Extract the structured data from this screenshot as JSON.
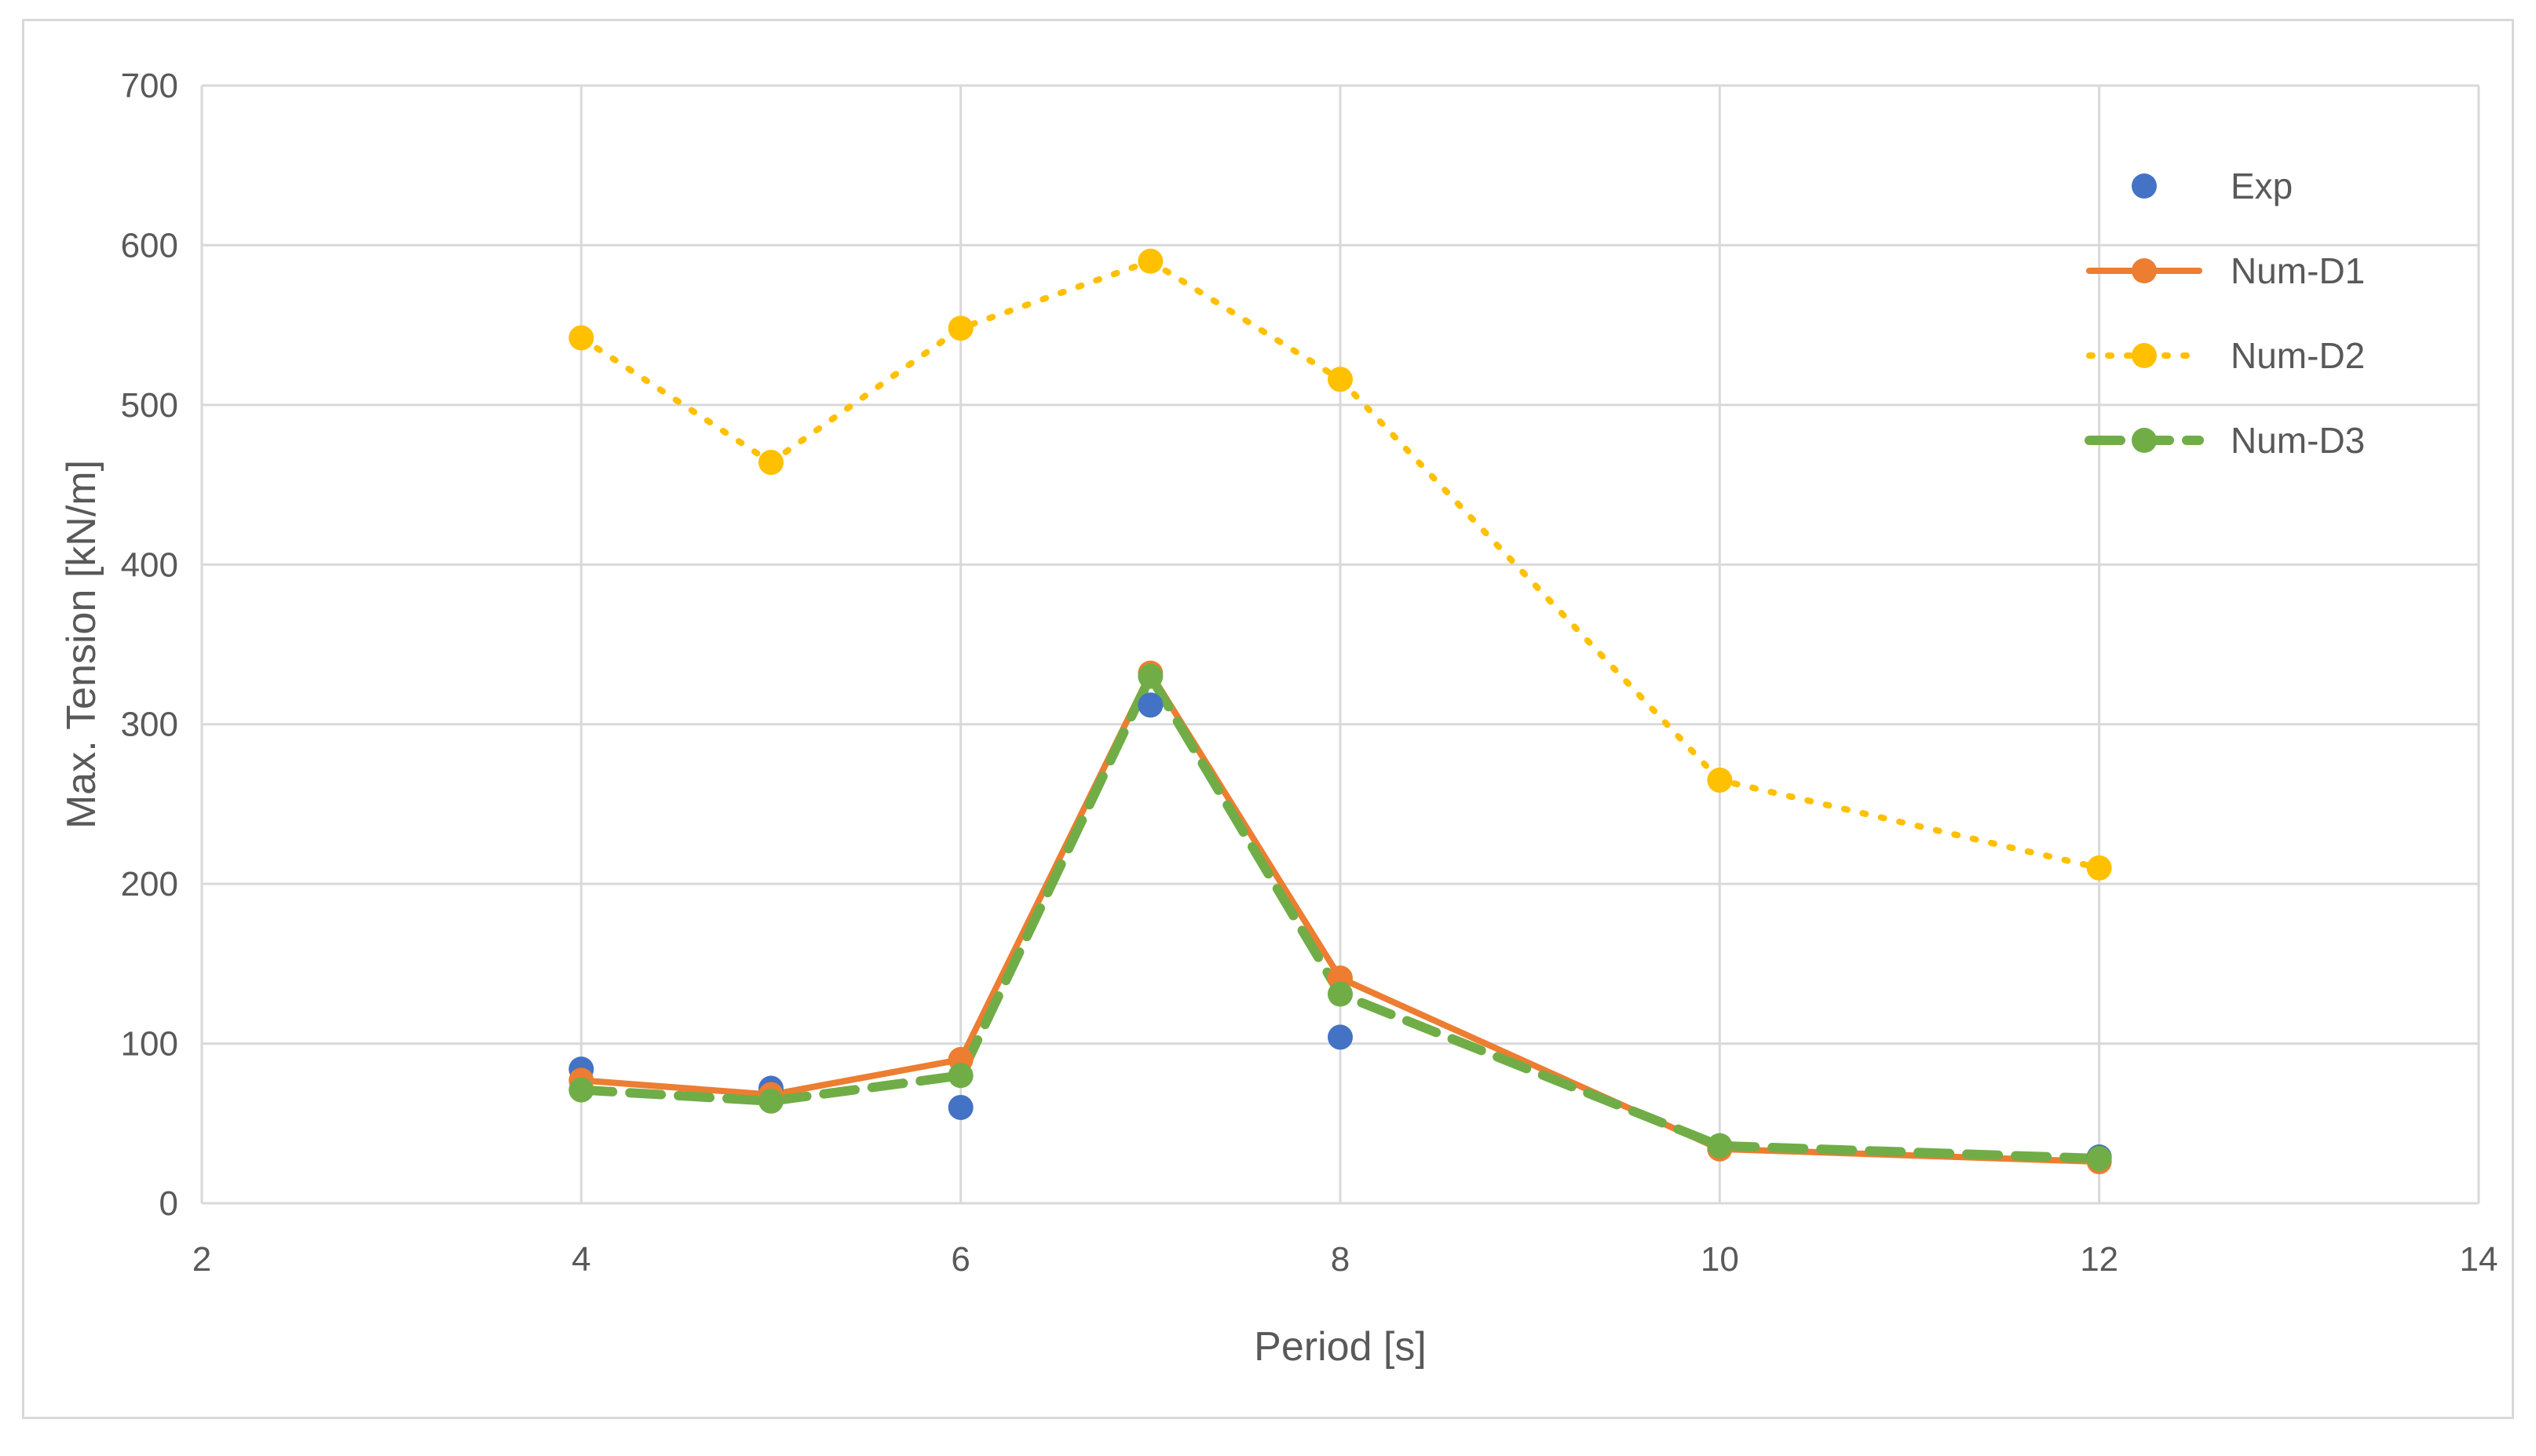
{
  "chart_data": {
    "type": "scatter",
    "title": "",
    "xlabel": "Period [s]",
    "ylabel": "Max. Tension [kN/m]",
    "xlim": [
      2,
      14
    ],
    "ylim": [
      0,
      700
    ],
    "xticks": [
      2,
      4,
      6,
      8,
      10,
      12,
      14
    ],
    "yticks": [
      0,
      100,
      200,
      300,
      400,
      500,
      600,
      700
    ],
    "grid": true,
    "legend_position": "top-right",
    "series": [
      {
        "name": "Exp",
        "color": "#4472C4",
        "line": "none",
        "marker": "circle",
        "x": [
          4,
          5,
          6,
          7,
          8,
          10,
          12
        ],
        "y": [
          84,
          72,
          60,
          312,
          104,
          36,
          29
        ]
      },
      {
        "name": "Num-D1",
        "color": "#ED7D31",
        "line": "solid",
        "marker": "circle",
        "x": [
          4,
          5,
          6,
          7,
          8,
          10,
          12
        ],
        "y": [
          77,
          68,
          90,
          332,
          141,
          34,
          26
        ]
      },
      {
        "name": "Num-D2",
        "color": "#FFC000",
        "line": "dotted",
        "marker": "circle",
        "x": [
          4,
          5,
          6,
          7,
          8,
          10,
          12
        ],
        "y": [
          542,
          464,
          548,
          590,
          516,
          265,
          210
        ]
      },
      {
        "name": "Num-D3",
        "color": "#70AD47",
        "line": "dashed",
        "marker": "circle",
        "x": [
          4,
          5,
          6,
          7,
          8,
          10,
          12
        ],
        "y": [
          71,
          64,
          80,
          330,
          131,
          36,
          28
        ]
      }
    ]
  }
}
